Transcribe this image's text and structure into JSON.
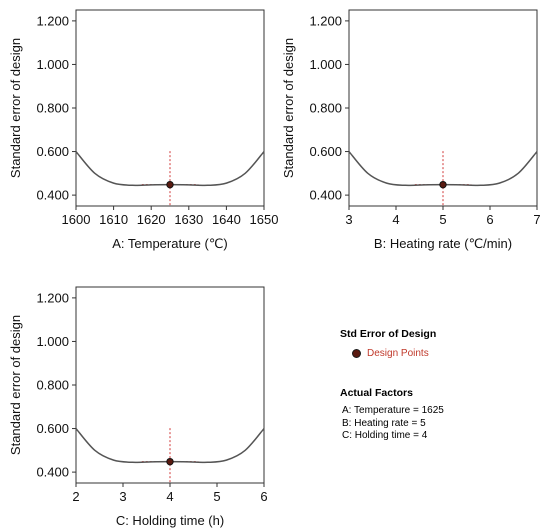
{
  "chart_data": [
    {
      "type": "line",
      "xlabel": "A: Temperature (℃)",
      "ylabel": "Standard error of design",
      "xlim": [
        1600,
        1650
      ],
      "ylim": [
        0.35,
        1.25
      ],
      "xticks": [
        1600,
        1610,
        1620,
        1630,
        1640,
        1650
      ],
      "xtick_labels": [
        "1600",
        "1610",
        "1620",
        "1630",
        "1640",
        "1650"
      ],
      "yticks": [
        0.4,
        0.6,
        0.8,
        1.0,
        1.2
      ],
      "ytick_labels": [
        "0.400",
        "0.600",
        "0.800",
        "1.000",
        "1.200"
      ],
      "series": [
        {
          "x": [
            1600,
            1605,
            1610,
            1615,
            1620,
            1625,
            1630,
            1635,
            1640,
            1645,
            1650
          ],
          "y": [
            0.6,
            0.5,
            0.455,
            0.445,
            0.447,
            0.448,
            0.447,
            0.445,
            0.455,
            0.5,
            0.6
          ]
        }
      ],
      "design_point": {
        "x": 1625,
        "y": 0.448
      }
    },
    {
      "type": "line",
      "xlabel": "B: Heating rate (℃/min)",
      "ylabel": "Standard error of design",
      "xlim": [
        3,
        7
      ],
      "ylim": [
        0.35,
        1.25
      ],
      "xticks": [
        3,
        4,
        5,
        6,
        7
      ],
      "xtick_labels": [
        "3",
        "4",
        "5",
        "6",
        "7"
      ],
      "yticks": [
        0.4,
        0.6,
        0.8,
        1.0,
        1.2
      ],
      "ytick_labels": [
        "0.400",
        "0.600",
        "0.800",
        "1.000",
        "1.200"
      ],
      "series": [
        {
          "x": [
            3,
            3.4,
            3.8,
            4.2,
            4.6,
            5,
            5.4,
            5.8,
            6.2,
            6.6,
            7
          ],
          "y": [
            0.6,
            0.5,
            0.455,
            0.445,
            0.447,
            0.448,
            0.447,
            0.445,
            0.455,
            0.5,
            0.6
          ]
        }
      ],
      "design_point": {
        "x": 5,
        "y": 0.448
      }
    },
    {
      "type": "line",
      "xlabel": "C: Holding time (h)",
      "ylabel": "Standard error of design",
      "xlim": [
        2,
        6
      ],
      "ylim": [
        0.35,
        1.25
      ],
      "xticks": [
        2,
        3,
        4,
        5,
        6
      ],
      "xtick_labels": [
        "2",
        "3",
        "4",
        "5",
        "6"
      ],
      "yticks": [
        0.4,
        0.6,
        0.8,
        1.0,
        1.2
      ],
      "ytick_labels": [
        "0.400",
        "0.600",
        "0.800",
        "1.000",
        "1.200"
      ],
      "series": [
        {
          "x": [
            2,
            2.4,
            2.8,
            3.2,
            3.6,
            4,
            4.4,
            4.8,
            5.2,
            5.6,
            6
          ],
          "y": [
            0.6,
            0.5,
            0.455,
            0.445,
            0.447,
            0.448,
            0.447,
            0.445,
            0.455,
            0.5,
            0.6
          ]
        }
      ],
      "design_point": {
        "x": 4,
        "y": 0.448
      }
    }
  ],
  "legend": {
    "title": "Std Error of Design",
    "item_label": "Design Points",
    "factors_title": "Actual Factors",
    "factors": [
      "A: Temperature = 1625",
      "B: Heating rate = 5",
      "C: Holding time = 4"
    ]
  },
  "colors": {
    "curve": "#555555",
    "guide": "#d23a3a",
    "marker": "#5a1a10",
    "legend_text": "#c0392b"
  }
}
